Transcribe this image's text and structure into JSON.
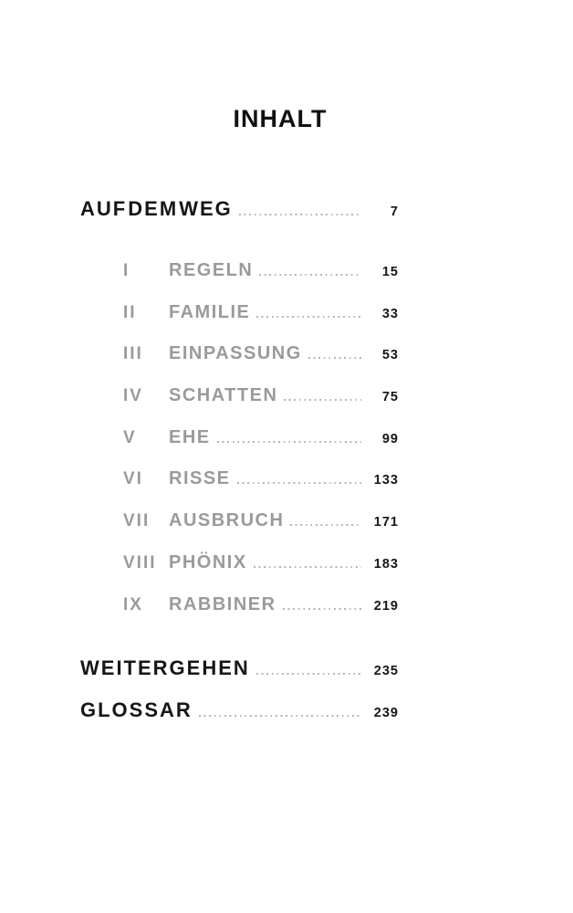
{
  "title": "INHALT",
  "front_entry": {
    "label": "AUF DEM WEG",
    "page": "7"
  },
  "chapters": [
    {
      "numeral": "I",
      "label": "REGELN",
      "page": "15"
    },
    {
      "numeral": "II",
      "label": "FAMILIE",
      "page": "33"
    },
    {
      "numeral": "III",
      "label": "EINPASSUNG",
      "page": "53"
    },
    {
      "numeral": "IV",
      "label": "SCHATTEN",
      "page": "75"
    },
    {
      "numeral": "V",
      "label": "EHE",
      "page": "99"
    },
    {
      "numeral": "VI",
      "label": "RISSE",
      "page": "133"
    },
    {
      "numeral": "VII",
      "label": "AUSBRUCH",
      "page": "171"
    },
    {
      "numeral": "VIII",
      "label": "PHÖNIX",
      "page": "183"
    },
    {
      "numeral": "IX",
      "label": "RABBINER",
      "page": "219"
    }
  ],
  "back_entries": [
    {
      "label": "WEITERGEHEN",
      "page": "235"
    },
    {
      "label": "GLOSSAR",
      "page": "239"
    }
  ],
  "colors": {
    "chapter_gray": "#9a9a9a",
    "text_black": "#161616",
    "leader_dot_gray": "#b5b5b5",
    "background": "#ffffff"
  }
}
